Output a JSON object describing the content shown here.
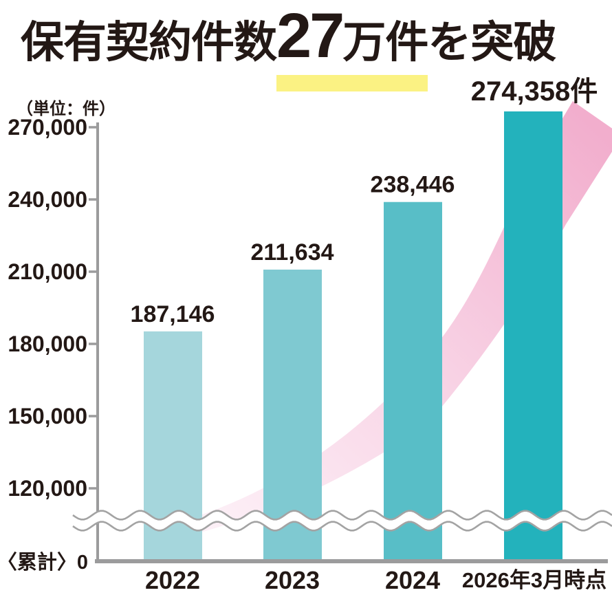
{
  "title": {
    "part1": "保有契約件数",
    "highlight_big": "27",
    "highlight_rest": "万件",
    "part2": "を突破",
    "highlight_color": "#fbf283"
  },
  "chart_data": {
    "type": "bar",
    "title": "保有契約件数27万件を突破",
    "unit_label": "（単位：件）",
    "origin_label": "〈累計〉0",
    "categories": [
      "2022",
      "2023",
      "2024",
      "2026年3月時点"
    ],
    "values": [
      187146,
      211634,
      238446,
      274358
    ],
    "value_labels": [
      "187,146",
      "211,634",
      "238,446",
      "274,358件"
    ],
    "y_tick_values": [
      270000,
      240000,
      210000,
      180000,
      150000,
      120000
    ],
    "y_tick_labels": [
      "270,000",
      "240,000",
      "210,000",
      "180,000",
      "150,000",
      "120,000"
    ],
    "ylabel": "件",
    "xlabel": "",
    "ylim_shown": [
      120000,
      280000
    ],
    "axis_break": true,
    "grid": false,
    "legend": false,
    "bar_colors": [
      "#a5d6dc",
      "#7fc9d1",
      "#58bec7",
      "#23b2bc"
    ],
    "arrow_gradient": {
      "start": "#fdf2f8",
      "mid": "#f8d3e5",
      "end": "#f2aecd"
    },
    "axis_color": "#9b9b9c",
    "wave_color": "#a3a3a3",
    "text_color": "#231815"
  }
}
